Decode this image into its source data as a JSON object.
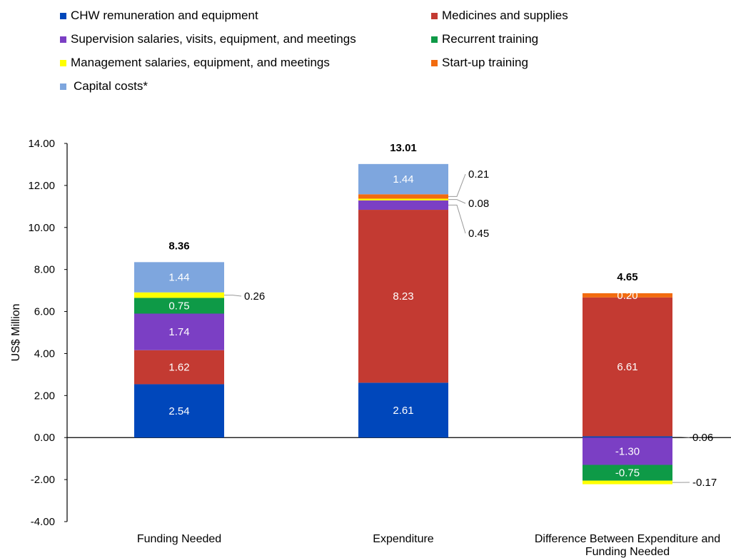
{
  "chart_data": {
    "type": "bar",
    "stacked": true,
    "ylabel": "US$ Million",
    "ylim": [
      -4,
      14
    ],
    "yticks": [
      "14.00",
      "12.00",
      "10.00",
      "8.00",
      "6.00",
      "4.00",
      "2.00",
      "0.00",
      "-2.00",
      "-4.00"
    ],
    "categories": [
      "Funding Needed",
      "Expenditure",
      "Difference Between Expenditure and Funding Needed"
    ],
    "totals": [
      "8.36",
      "13.01",
      "4.65"
    ],
    "legend_placement": "top",
    "series": [
      {
        "name": "CHW remuneration and equipment",
        "color": "#0047BB",
        "values": [
          2.54,
          2.61,
          0.06
        ],
        "labels": [
          "2.54",
          "2.61",
          "0.06"
        ]
      },
      {
        "name": "Medicines and supplies",
        "color": "#C33A32",
        "values": [
          1.62,
          8.23,
          6.61
        ],
        "labels": [
          "1.62",
          "8.23",
          "6.61"
        ]
      },
      {
        "name": "Supervision salaries, visits, equipment, and meetings",
        "color": "#7B3FC4",
        "values": [
          1.74,
          0.45,
          -1.3
        ],
        "labels": [
          "1.74",
          "0.45",
          "-1.30"
        ]
      },
      {
        "name": "Recurrent training",
        "color": "#0E9A47",
        "values": [
          0.75,
          0.0,
          -0.75
        ],
        "labels": [
          "0.75",
          "",
          "-0.75"
        ]
      },
      {
        "name": "Management salaries, equipment, and meetings",
        "color": "#FFFF00",
        "values": [
          0.26,
          0.08,
          -0.17
        ],
        "labels": [
          "0.26",
          "0.08",
          "-0.17"
        ]
      },
      {
        "name": "Start-up training",
        "color": "#F26B0F",
        "values": [
          0.0,
          0.21,
          0.2
        ],
        "labels": [
          "",
          "0.21",
          "0.20"
        ]
      },
      {
        "name": "Capital costs*",
        "color": "#7EA6DE",
        "values": [
          1.44,
          1.44,
          0.0
        ],
        "labels": [
          "1.44",
          "1.44",
          ""
        ]
      }
    ]
  }
}
